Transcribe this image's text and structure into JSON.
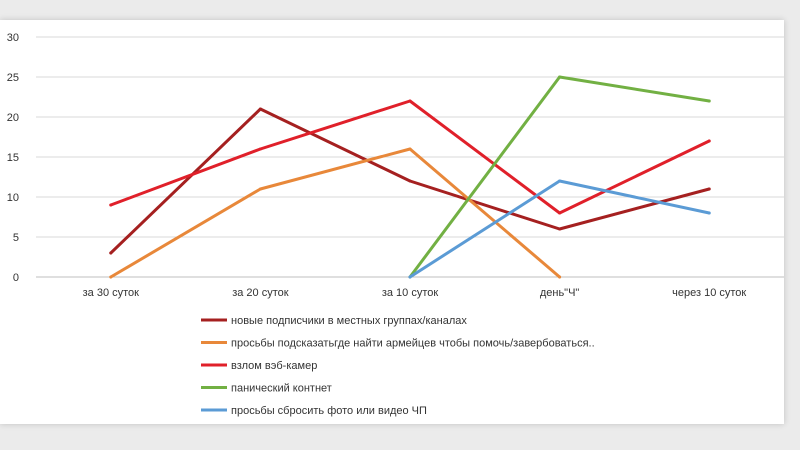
{
  "chart_data": {
    "type": "line",
    "title": "",
    "xlabel": "",
    "ylabel": "",
    "ylim": [
      0,
      30
    ],
    "yticks": [
      0,
      5,
      10,
      15,
      20,
      25,
      30
    ],
    "grid": true,
    "legend_position": "bottom",
    "categories": [
      "за 30 суток",
      "за 20 суток",
      "за 10 суток",
      "день\"Ч\"",
      "через 10 суток"
    ],
    "series": [
      {
        "name": "новые подписчики в местных группах/каналах",
        "color": "#a52020",
        "values": [
          3,
          21,
          12,
          6,
          11
        ]
      },
      {
        "name": "просьбы подсказатьгде найти армейцев чтобы помочь/завербоваться..",
        "color": "#e8883a",
        "values": [
          0,
          11,
          16,
          0,
          null
        ]
      },
      {
        "name": "взлом вэб-камер",
        "color": "#e0202a",
        "values": [
          9,
          16,
          22,
          8,
          17
        ]
      },
      {
        "name": "панический контнет",
        "color": "#72b043",
        "values": [
          null,
          null,
          0,
          25,
          22
        ]
      },
      {
        "name": "просьбы сбросить фото или видео ЧП",
        "color": "#5b9bd5",
        "values": [
          null,
          null,
          0,
          12,
          8
        ]
      }
    ]
  }
}
